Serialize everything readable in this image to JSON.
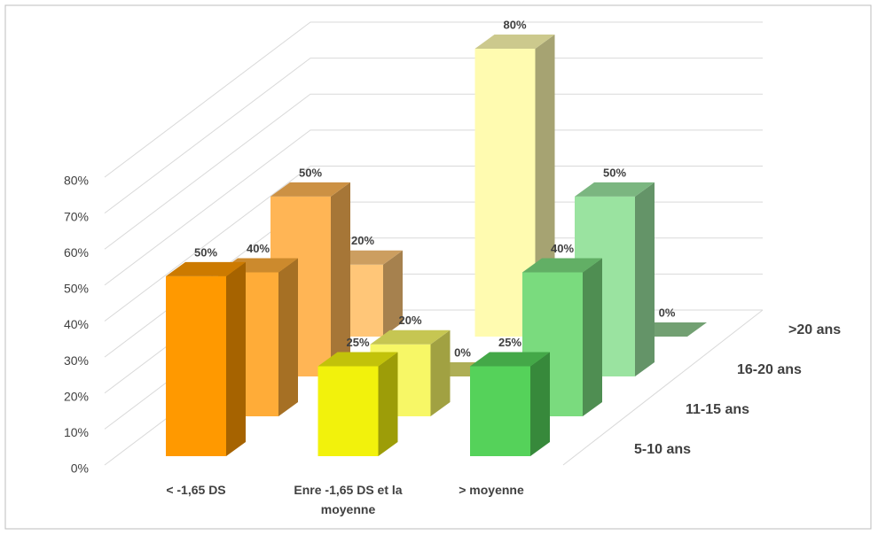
{
  "chart_data": {
    "type": "bar3d",
    "categories": [
      "< -1,65 DS",
      "Enre -1,65 DS et la moyenne",
      "> moyenne"
    ],
    "series": [
      {
        "name": "5-10 ans",
        "colors": [
          "#FF9900",
          "#F2F20C",
          "#55D25A"
        ],
        "values": [
          50,
          25,
          25
        ],
        "value_labels": [
          "50%",
          "25%",
          "25%"
        ]
      },
      {
        "name": "11-15 ans",
        "colors": [
          "#FFAC38",
          "#F7F766",
          "#7ADB7E"
        ],
        "values": [
          40,
          20,
          40
        ],
        "value_labels": [
          "40%",
          "20%",
          "40%"
        ]
      },
      {
        "name": "16-20 ans",
        "colors": [
          "#FFB555",
          "#D9D96A",
          "#9AE3A0"
        ],
        "values": [
          50,
          0,
          50
        ],
        "value_labels": [
          "50%",
          "0%",
          "50%"
        ]
      },
      {
        "name": ">20 ans",
        "colors": [
          "#FFC678",
          "#FFFBB0",
          "#8FC88F"
        ],
        "values": [
          20,
          80,
          0
        ],
        "value_labels": [
          "20%",
          "80%",
          "0%"
        ]
      }
    ],
    "ylim": [
      0,
      80
    ],
    "yticks": [
      {
        "value": 0,
        "label": "0%"
      },
      {
        "value": 10,
        "label": "10%"
      },
      {
        "value": 20,
        "label": "20%"
      },
      {
        "value": 30,
        "label": "30%"
      },
      {
        "value": 40,
        "label": "40%"
      },
      {
        "value": 50,
        "label": "50%"
      },
      {
        "value": 60,
        "label": "60%"
      },
      {
        "value": 70,
        "label": "70%"
      },
      {
        "value": 80,
        "label": "80%"
      }
    ],
    "grid": true
  }
}
